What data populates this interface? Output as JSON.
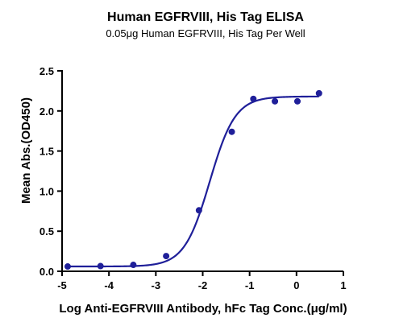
{
  "chart_data": {
    "type": "scatter",
    "title": "Human EGFRVIII, His Tag ELISA",
    "subtitle": "0.05μg Human EGFRVIII, His Tag Per Well",
    "xlabel": "Log Anti-EGFRVIII Antibody, hFc Tag Conc.(μg/ml)",
    "ylabel": "Mean Abs.(OD450)",
    "xlim": [
      -5,
      1
    ],
    "ylim": [
      0,
      2.5
    ],
    "x_ticks": [
      "-5",
      "-4",
      "-3",
      "-2",
      "-1",
      "0",
      "1"
    ],
    "y_ticks": [
      "0.0",
      "0.5",
      "1.0",
      "1.5",
      "2.0",
      "2.5"
    ],
    "grid": false,
    "point_color": "#1f1f99",
    "curve_color": "#1f1f99",
    "series": [
      {
        "x": [
          -4.88,
          -4.18,
          -3.48,
          -2.78,
          -2.08,
          -1.38,
          -0.92,
          -0.46,
          0.02,
          0.48
        ],
        "y": [
          0.06,
          0.065,
          0.08,
          0.19,
          0.76,
          1.74,
          2.15,
          2.12,
          2.12,
          2.22
        ]
      }
    ],
    "fit": {
      "model": "4PL",
      "bottom": 0.06,
      "top": 2.18,
      "log_ec50": -1.85,
      "hill_slope": 1.6
    }
  }
}
